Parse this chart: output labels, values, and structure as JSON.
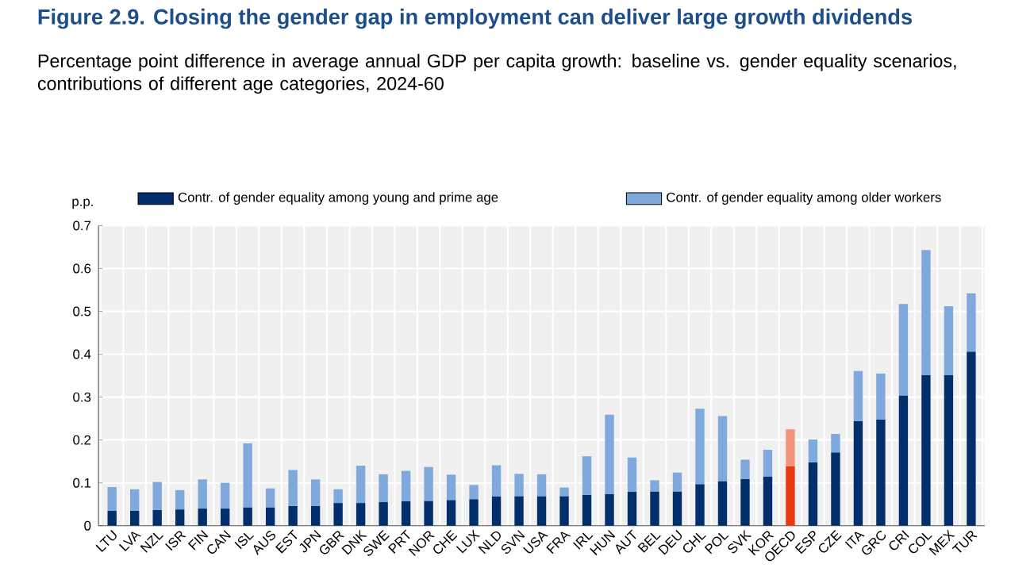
{
  "chart_data": {
    "type": "bar",
    "stacked": true,
    "title": "Figure 2.9. Closing the gender gap in employment can deliver large growth dividends",
    "subtitle": "Percentage point difference in average annual GDP per capita growth: baseline vs. gender equality scenarios, contributions of different age categories, 2024-60",
    "ylabel": "p.p.",
    "categories": [
      "LTU",
      "LVA",
      "NZL",
      "ISR",
      "FIN",
      "CAN",
      "ISL",
      "AUS",
      "EST",
      "JPN",
      "GBR",
      "DNK",
      "SWE",
      "PRT",
      "NOR",
      "CHE",
      "LUX",
      "NLD",
      "SVN",
      "USA",
      "FRA",
      "IRL",
      "HUN",
      "AUT",
      "BEL",
      "DEU",
      "CHL",
      "POL",
      "SVK",
      "KOR",
      "OECD",
      "ESP",
      "CZE",
      "ITA",
      "GRC",
      "CRI",
      "COL",
      "MEX",
      "TUR"
    ],
    "series": [
      {
        "name": "Contr. of gender equality among young and prime age",
        "color": "#002f6c",
        "colors": [
          "#002f6c",
          "#002f6c",
          "#002f6c",
          "#002f6c",
          "#002f6c",
          "#002f6c",
          "#002f6c",
          "#002f6c",
          "#002f6c",
          "#002f6c",
          "#002f6c",
          "#002f6c",
          "#002f6c",
          "#002f6c",
          "#002f6c",
          "#002f6c",
          "#002f6c",
          "#002f6c",
          "#002f6c",
          "#002f6c",
          "#002f6c",
          "#002f6c",
          "#002f6c",
          "#002f6c",
          "#002f6c",
          "#002f6c",
          "#002f6c",
          "#002f6c",
          "#002f6c",
          "#002f6c",
          "#e8380d",
          "#002f6c",
          "#002f6c",
          "#002f6c",
          "#002f6c",
          "#002f6c",
          "#002f6c",
          "#002f6c",
          "#002f6c"
        ],
        "values": [
          0.035,
          0.035,
          0.037,
          0.038,
          0.04,
          0.04,
          0.043,
          0.043,
          0.046,
          0.046,
          0.053,
          0.053,
          0.055,
          0.057,
          0.058,
          0.06,
          0.062,
          0.068,
          0.069,
          0.069,
          0.069,
          0.072,
          0.074,
          0.079,
          0.08,
          0.08,
          0.097,
          0.104,
          0.109,
          0.115,
          0.139,
          0.148,
          0.171,
          0.244,
          0.248,
          0.304,
          0.351,
          0.351,
          0.406
        ]
      },
      {
        "name": "Contr. of gender equality among older workers",
        "color": "#7fa8dc",
        "colors": [
          "#7fa8dc",
          "#7fa8dc",
          "#7fa8dc",
          "#7fa8dc",
          "#7fa8dc",
          "#7fa8dc",
          "#7fa8dc",
          "#7fa8dc",
          "#7fa8dc",
          "#7fa8dc",
          "#7fa8dc",
          "#7fa8dc",
          "#7fa8dc",
          "#7fa8dc",
          "#7fa8dc",
          "#7fa8dc",
          "#7fa8dc",
          "#7fa8dc",
          "#7fa8dc",
          "#7fa8dc",
          "#7fa8dc",
          "#7fa8dc",
          "#7fa8dc",
          "#7fa8dc",
          "#7fa8dc",
          "#7fa8dc",
          "#7fa8dc",
          "#7fa8dc",
          "#7fa8dc",
          "#7fa8dc",
          "#f4937a",
          "#7fa8dc",
          "#7fa8dc",
          "#7fa8dc",
          "#7fa8dc",
          "#7fa8dc",
          "#7fa8dc",
          "#7fa8dc",
          "#7fa8dc"
        ],
        "values": [
          0.055,
          0.05,
          0.065,
          0.045,
          0.068,
          0.06,
          0.149,
          0.044,
          0.084,
          0.062,
          0.032,
          0.087,
          0.065,
          0.071,
          0.079,
          0.059,
          0.033,
          0.073,
          0.052,
          0.051,
          0.02,
          0.09,
          0.185,
          0.08,
          0.026,
          0.044,
          0.176,
          0.152,
          0.045,
          0.062,
          0.086,
          0.053,
          0.043,
          0.117,
          0.107,
          0.213,
          0.292,
          0.161,
          0.136
        ]
      }
    ],
    "ylim": [
      0,
      0.7
    ],
    "yticks": [
      0,
      0.1,
      0.2,
      0.3,
      0.4,
      0.5,
      0.6,
      0.7
    ],
    "grid": true,
    "legend": "top"
  }
}
